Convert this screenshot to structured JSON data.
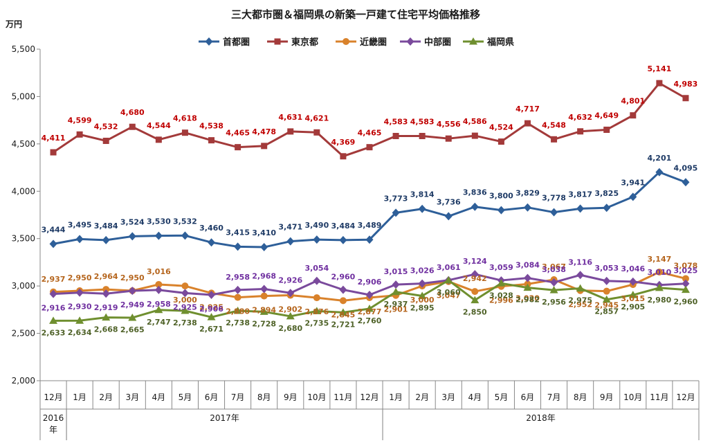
{
  "chart_data": {
    "type": "line",
    "title": "三大都市圏＆福岡県の新築一戸建て住宅平均価格推移",
    "ylabel": "万円",
    "ylim": [
      2000,
      5500
    ],
    "yticks": [
      "2,000",
      "2,500",
      "3,000",
      "3,500",
      "4,000",
      "4,500",
      "5,000",
      "5,500"
    ],
    "ytick_values": [
      2000,
      2500,
      3000,
      3500,
      4000,
      4500,
      5000,
      5500
    ],
    "categories": [
      "12月",
      "1月",
      "2月",
      "3月",
      "4月",
      "5月",
      "6月",
      "7月",
      "8月",
      "9月",
      "10月",
      "11月",
      "12月",
      "1月",
      "2月",
      "3月",
      "4月",
      "5月",
      "6月",
      "7月",
      "8月",
      "9月",
      "10月",
      "11月",
      "12月"
    ],
    "year_groups": [
      {
        "label": "2016年",
        "start": 0,
        "end": 0
      },
      {
        "label": "2017年",
        "start": 1,
        "end": 12
      },
      {
        "label": "2018年",
        "start": 13,
        "end": 24
      }
    ],
    "grid": false,
    "legend": "top",
    "series": [
      {
        "name": "首都圏",
        "color": "#2e5f99",
        "marker": "diamond",
        "values": [
          3444,
          3495,
          3484,
          3524,
          3530,
          3532,
          3460,
          3415,
          3410,
          3471,
          3490,
          3484,
          3489,
          3773,
          3814,
          3736,
          3836,
          3800,
          3829,
          3778,
          3817,
          3825,
          3941,
          4201,
          4095
        ]
      },
      {
        "name": "東京都",
        "color": "#a33a3a",
        "marker": "square",
        "values": [
          4411,
          4599,
          4532,
          4680,
          4544,
          4618,
          4538,
          4465,
          4478,
          4631,
          4621,
          4369,
          4465,
          4583,
          4583,
          4556,
          4586,
          4524,
          4717,
          4548,
          4632,
          4649,
          4801,
          5141,
          4983
        ]
      },
      {
        "name": "近畿圏",
        "color": "#d9822b",
        "marker": "circle",
        "values": [
          2937,
          2950,
          2964,
          2950,
          3016,
          3000,
          2925,
          2880,
          2894,
          2902,
          2876,
          2845,
          2877,
          2901,
          3000,
          3047,
          2942,
          2996,
          3020,
          3067,
          2952,
          2945,
          3015,
          3147,
          3078
        ]
      },
      {
        "name": "中部圏",
        "color": "#7a4a9c",
        "marker": "diamond",
        "values": [
          2916,
          2930,
          2919,
          2949,
          2958,
          2925,
          2906,
          2958,
          2968,
          2926,
          3054,
          2960,
          2906,
          3015,
          3026,
          3061,
          3124,
          3059,
          3084,
          3038,
          3116,
          3053,
          3046,
          3010,
          3025
        ]
      },
      {
        "name": "福岡県",
        "color": "#6f8f2f",
        "marker": "triangle",
        "values": [
          2633,
          2634,
          2668,
          2665,
          2747,
          2738,
          2671,
          2738,
          2728,
          2680,
          2735,
          2721,
          2760,
          2937,
          2895,
          3060,
          2850,
          3028,
          2982,
          2956,
          2975,
          2857,
          2905,
          2980,
          2960
        ]
      }
    ],
    "data_labels": {
      "首都圏": [
        "3,444",
        "3,495",
        "3,484",
        "3,524",
        "3,530",
        "3,532",
        "3,460",
        "3,415",
        "3,410",
        "3,471",
        "3,490",
        "3,484",
        "3,489",
        "3,773",
        "3,814",
        "3,736",
        "3,836",
        "3,800",
        "3,829",
        "3,778",
        "3,817",
        "3,825",
        "3,941",
        "4,201",
        "4,095"
      ],
      "東京都": [
        "4,411",
        "4,599",
        "4,532",
        "4,680",
        "4,544",
        "4,618",
        "4,538",
        "4,465",
        "4,478",
        "4,631",
        "4,621",
        "4,369",
        "4,465",
        "4,583",
        "4,583",
        "4,556",
        "4,586",
        "4,524",
        "4,717",
        "4,548",
        "4,632",
        "4,649",
        "4,801",
        "5,141",
        "4,983"
      ],
      "近畿圏": [
        "2,937",
        "2,950",
        "2,964",
        "2,950",
        "3,016",
        "3,000",
        "2,925",
        "2,880",
        "2,894",
        "2,902",
        "2,876",
        "2,845",
        "2,877",
        "2,901",
        "3,000",
        "3,047",
        "2,942",
        "2,996",
        "3,020",
        "3,067",
        "2,952",
        "2,945",
        "3,015",
        "3,147",
        "3,078"
      ],
      "中部圏": [
        "2,916",
        "2,930",
        "2,919",
        "2,949",
        "2,958",
        "2,925",
        "2,906",
        "2,958",
        "2,968",
        "2,926",
        "3,054",
        "2,960",
        "2,906",
        "3,015",
        "3,026",
        "3,061",
        "3,124",
        "3,059",
        "3,084",
        "3,038",
        "3,116",
        "3,053",
        "3,046",
        "3,010",
        "3,025"
      ],
      "福岡県": [
        "2,633",
        "2,634",
        "2,668",
        "2,665",
        "2,747",
        "2,738",
        "2,671",
        "2,738",
        "2,728",
        "2,680",
        "2,735",
        "2,721",
        "2,760",
        "2,937",
        "2,895",
        "3,060",
        "2,850",
        "3,028",
        "2,982",
        "2,956",
        "2,975",
        "2,857",
        "2,905",
        "2,980",
        "2,960"
      ]
    }
  }
}
